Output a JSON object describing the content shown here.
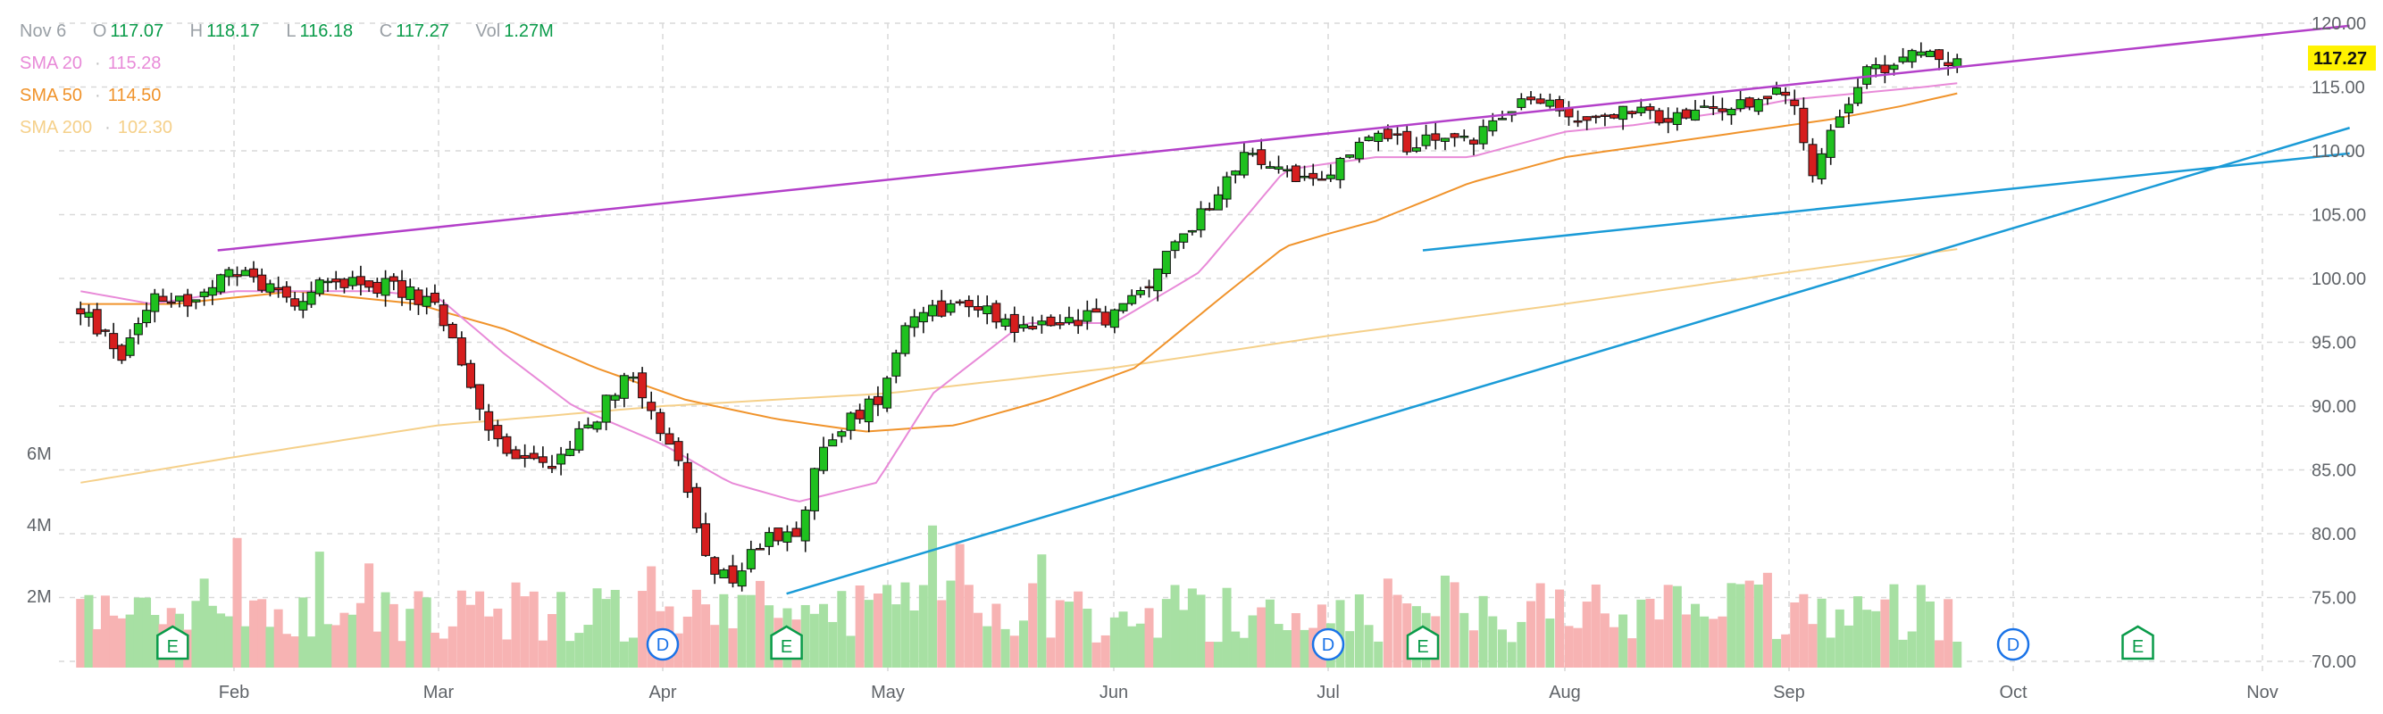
{
  "legend": {
    "date": "Nov 6",
    "open_label": "O",
    "open": "117.07",
    "high_label": "H",
    "high": "118.17",
    "low_label": "L",
    "low": "116.18",
    "close_label": "C",
    "close": "117.27",
    "vol_label": "Vol",
    "vol": "1.27M",
    "sma": [
      {
        "label": "SMA 20",
        "value": "115.28",
        "color": "#e88ad8"
      },
      {
        "label": "SMA 50",
        "value": "114.50",
        "color": "#f0932b"
      },
      {
        "label": "SMA 200",
        "value": "102.30",
        "color": "#f5d08a"
      }
    ]
  },
  "colors": {
    "up": "#1fc11f",
    "down": "#d61e1e",
    "vol_up": "#a7e0a3",
    "vol_down": "#f7b3b3",
    "trend_upper": "#b33fc9",
    "trend_lower": "#1a9bd7",
    "grid": "#d9d9d9",
    "last_badge": "#fff200"
  },
  "chart_data": {
    "type": "candlestick",
    "x_ticks": [
      "Feb",
      "Mar",
      "Apr",
      "May",
      "Jun",
      "Jul",
      "Aug",
      "Sep",
      "Oct",
      "Nov"
    ],
    "y_ticks": [
      "120.00",
      "115.00",
      "110.00",
      "105.00",
      "100.00",
      "95.00",
      "90.00",
      "85.00",
      "80.00",
      "75.00",
      "70.00"
    ],
    "ylim": [
      70,
      120
    ],
    "volume_ticks": [
      "6M",
      "4M",
      "2M"
    ],
    "last_price": "117.27",
    "event_markers": [
      {
        "label": "E",
        "month": "Feb",
        "offset": -0.3
      },
      {
        "label": "D",
        "month": "Apr",
        "offset": 0
      },
      {
        "label": "E",
        "month": "May",
        "offset": -0.45
      },
      {
        "label": "D",
        "month": "Jul",
        "offset": 0
      },
      {
        "label": "E",
        "month": "Aug",
        "offset": -0.6
      },
      {
        "label": "D",
        "month": "Oct",
        "offset": 0
      },
      {
        "label": "E",
        "month": "Nov",
        "offset": -0.5
      }
    ],
    "trendlines": [
      {
        "name": "",
        "color": "trend_upper",
        "from": {
          "month": "Feb",
          "offset": -0.08,
          "price": 102.2
        },
        "to": {
          "month": "Nov",
          "offset": 0.35,
          "price": 119.8
        }
      },
      {
        "name": "",
        "color": "trend_lower",
        "from": {
          "month": "May",
          "offset": -0.45,
          "price": 75.3
        },
        "to": {
          "month": "Nov",
          "offset": 0.35,
          "price": 111.8
        }
      },
      {
        "name": "",
        "color": "trend_lower",
        "from": {
          "month": "Aug",
          "offset": -0.6,
          "price": 102.2
        },
        "to": {
          "month": "Nov",
          "offset": 0.35,
          "price": 109.8
        }
      }
    ],
    "anchors": [
      [
        -0.75,
        97.5
      ],
      [
        -0.55,
        94.0
      ],
      [
        -0.4,
        99.0
      ],
      [
        -0.2,
        98.0
      ],
      [
        0.0,
        100.5
      ],
      [
        0.3,
        98.5
      ],
      [
        0.55,
        100.0
      ],
      [
        0.85,
        99.0
      ],
      [
        1.0,
        97.5
      ],
      [
        1.15,
        91.0
      ],
      [
        1.3,
        86.0
      ],
      [
        1.5,
        85.5
      ],
      [
        1.7,
        89.0
      ],
      [
        1.85,
        93.0
      ],
      [
        1.95,
        90.0
      ],
      [
        2.1,
        84.0
      ],
      [
        2.2,
        77.0
      ],
      [
        2.32,
        76.5
      ],
      [
        2.45,
        79.5
      ],
      [
        2.6,
        80.5
      ],
      [
        2.7,
        86.0
      ],
      [
        2.8,
        88.5
      ],
      [
        2.95,
        90.5
      ],
      [
        3.1,
        97.5
      ],
      [
        3.4,
        98.0
      ],
      [
        3.6,
        96.0
      ],
      [
        3.85,
        97.0
      ],
      [
        4.0,
        97.0
      ],
      [
        4.15,
        99.5
      ],
      [
        4.4,
        105.0
      ],
      [
        4.6,
        109.5
      ],
      [
        4.8,
        108.5
      ],
      [
        4.95,
        107.0
      ],
      [
        5.15,
        111.0
      ],
      [
        5.35,
        110.5
      ],
      [
        5.6,
        111.0
      ],
      [
        5.85,
        114.0
      ],
      [
        6.05,
        112.5
      ],
      [
        6.25,
        113.0
      ],
      [
        6.45,
        112.5
      ],
      [
        6.8,
        113.5
      ],
      [
        7.0,
        115.0
      ],
      [
        7.1,
        108.5
      ],
      [
        7.3,
        115.5
      ],
      [
        7.5,
        117.5
      ],
      [
        7.75,
        117.3
      ]
    ],
    "sma20_anchors": [
      [
        -0.75,
        99.0
      ],
      [
        -0.4,
        98.0
      ],
      [
        0.0,
        99.0
      ],
      [
        0.7,
        99.0
      ],
      [
        1.0,
        98.5
      ],
      [
        1.3,
        94.0
      ],
      [
        1.6,
        90.0
      ],
      [
        2.0,
        87.0
      ],
      [
        2.3,
        84.0
      ],
      [
        2.6,
        82.5
      ],
      [
        2.95,
        84.0
      ],
      [
        3.2,
        91.0
      ],
      [
        3.6,
        96.5
      ],
      [
        4.0,
        96.5
      ],
      [
        4.4,
        100.5
      ],
      [
        4.8,
        108.5
      ],
      [
        5.2,
        109.5
      ],
      [
        5.6,
        109.5
      ],
      [
        6.0,
        111.5
      ],
      [
        6.3,
        112.0
      ],
      [
        6.7,
        113.0
      ],
      [
        7.0,
        114.0
      ],
      [
        7.3,
        114.5
      ],
      [
        7.6,
        115.0
      ],
      [
        7.75,
        115.3
      ]
    ],
    "sma50_anchors": [
      [
        -0.75,
        98.0
      ],
      [
        -0.3,
        98.0
      ],
      [
        0.3,
        99.0
      ],
      [
        0.9,
        98.0
      ],
      [
        1.3,
        96.0
      ],
      [
        1.7,
        93.0
      ],
      [
        2.1,
        90.5
      ],
      [
        2.5,
        89.0
      ],
      [
        2.9,
        88.0
      ],
      [
        3.3,
        88.5
      ],
      [
        3.7,
        90.5
      ],
      [
        4.1,
        93.0
      ],
      [
        4.5,
        98.5
      ],
      [
        4.8,
        102.5
      ],
      [
        5.2,
        104.5
      ],
      [
        5.6,
        107.5
      ],
      [
        6.0,
        109.5
      ],
      [
        6.4,
        110.5
      ],
      [
        6.8,
        111.5
      ],
      [
        7.2,
        112.5
      ],
      [
        7.5,
        113.5
      ],
      [
        7.75,
        114.5
      ]
    ],
    "sma200_anchors": [
      [
        -0.75,
        84.0
      ],
      [
        0.0,
        86.0
      ],
      [
        1.0,
        88.5
      ],
      [
        2.0,
        90.0
      ],
      [
        3.0,
        91.0
      ],
      [
        4.0,
        93.0
      ],
      [
        5.0,
        95.5
      ],
      [
        6.0,
        98.0
      ],
      [
        7.0,
        100.5
      ],
      [
        7.75,
        102.3
      ]
    ]
  }
}
